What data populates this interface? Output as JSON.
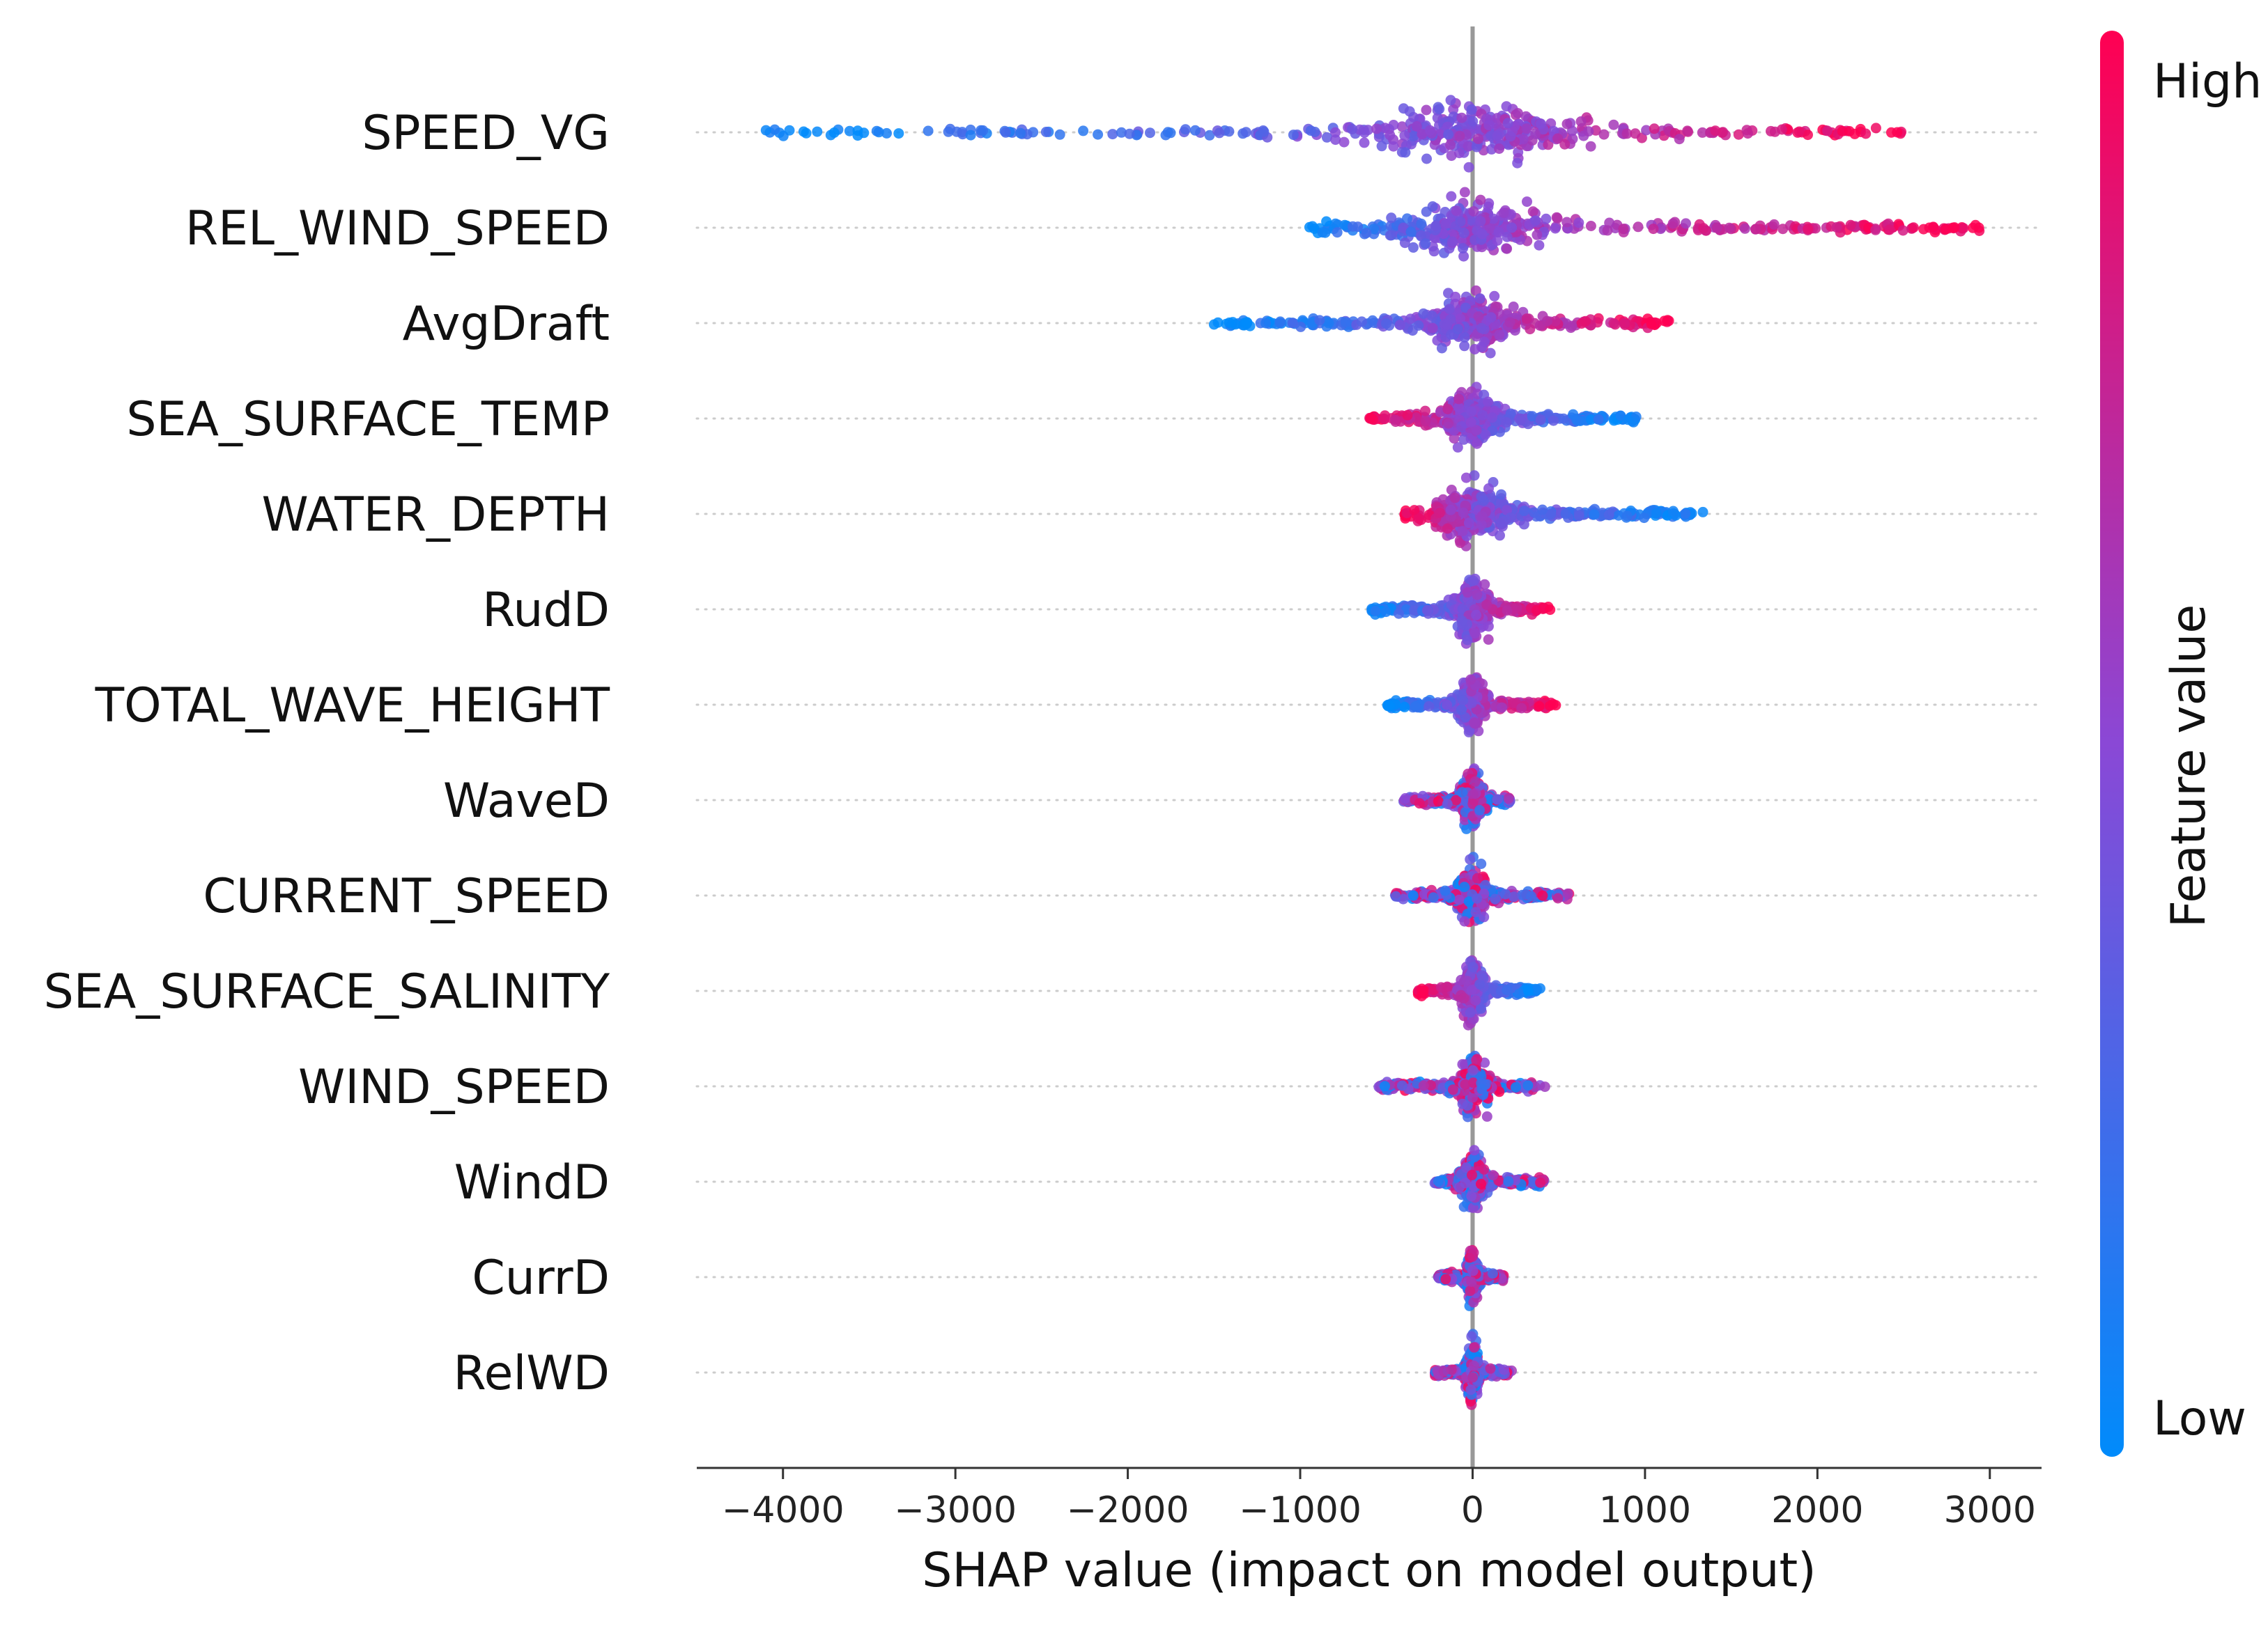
{
  "chart_data": {
    "type": "scatter",
    "subtype": "shap-beeswarm",
    "title": "",
    "xlabel": "SHAP value (impact on model output)",
    "ylabel": "",
    "xlim": [
      -4500,
      3300
    ],
    "xticks": [
      -4000,
      -3000,
      -2000,
      -1000,
      0,
      1000,
      2000,
      3000
    ],
    "xtick_labels": [
      "−4000",
      "−3000",
      "−2000",
      "−1000",
      "0",
      "1000",
      "2000",
      "3000"
    ],
    "colorbar": {
      "label": "Feature value",
      "high_label": "High",
      "low_label": "Low",
      "high_color": "#ff0052",
      "mid_color": "#8a48d6",
      "low_color": "#008bfb"
    },
    "features": [
      {
        "name": "SPEED_VG",
        "min": -4100,
        "max": 2500,
        "low_side": "negative"
      },
      {
        "name": "REL_WIND_SPEED",
        "min": -950,
        "max": 2950,
        "low_side": "negative"
      },
      {
        "name": "AvgDraft",
        "min": -1500,
        "max": 1150,
        "low_side": "negative"
      },
      {
        "name": "SEA_SURFACE_TEMP",
        "min": -600,
        "max": 950,
        "low_side": "positive"
      },
      {
        "name": "WATER_DEPTH",
        "min": -400,
        "max": 1350,
        "low_side": "positive"
      },
      {
        "name": "RudD",
        "min": -600,
        "max": 450,
        "low_side": "negative"
      },
      {
        "name": "TOTAL_WAVE_HEIGHT",
        "min": -500,
        "max": 500,
        "low_side": "negative"
      },
      {
        "name": "WaveD",
        "min": -400,
        "max": 220,
        "low_side": "mixed"
      },
      {
        "name": "CURRENT_SPEED",
        "min": -450,
        "max": 560,
        "low_side": "mixed"
      },
      {
        "name": "SEA_SURFACE_SALINITY",
        "min": -320,
        "max": 400,
        "low_side": "positive"
      },
      {
        "name": "WIND_SPEED",
        "min": -550,
        "max": 420,
        "low_side": "mixed"
      },
      {
        "name": "WindD",
        "min": -220,
        "max": 420,
        "low_side": "mixed"
      },
      {
        "name": "CurrD",
        "min": -200,
        "max": 180,
        "low_side": "mixed"
      },
      {
        "name": "RelWD",
        "min": -220,
        "max": 230,
        "low_side": "mixed"
      }
    ]
  }
}
